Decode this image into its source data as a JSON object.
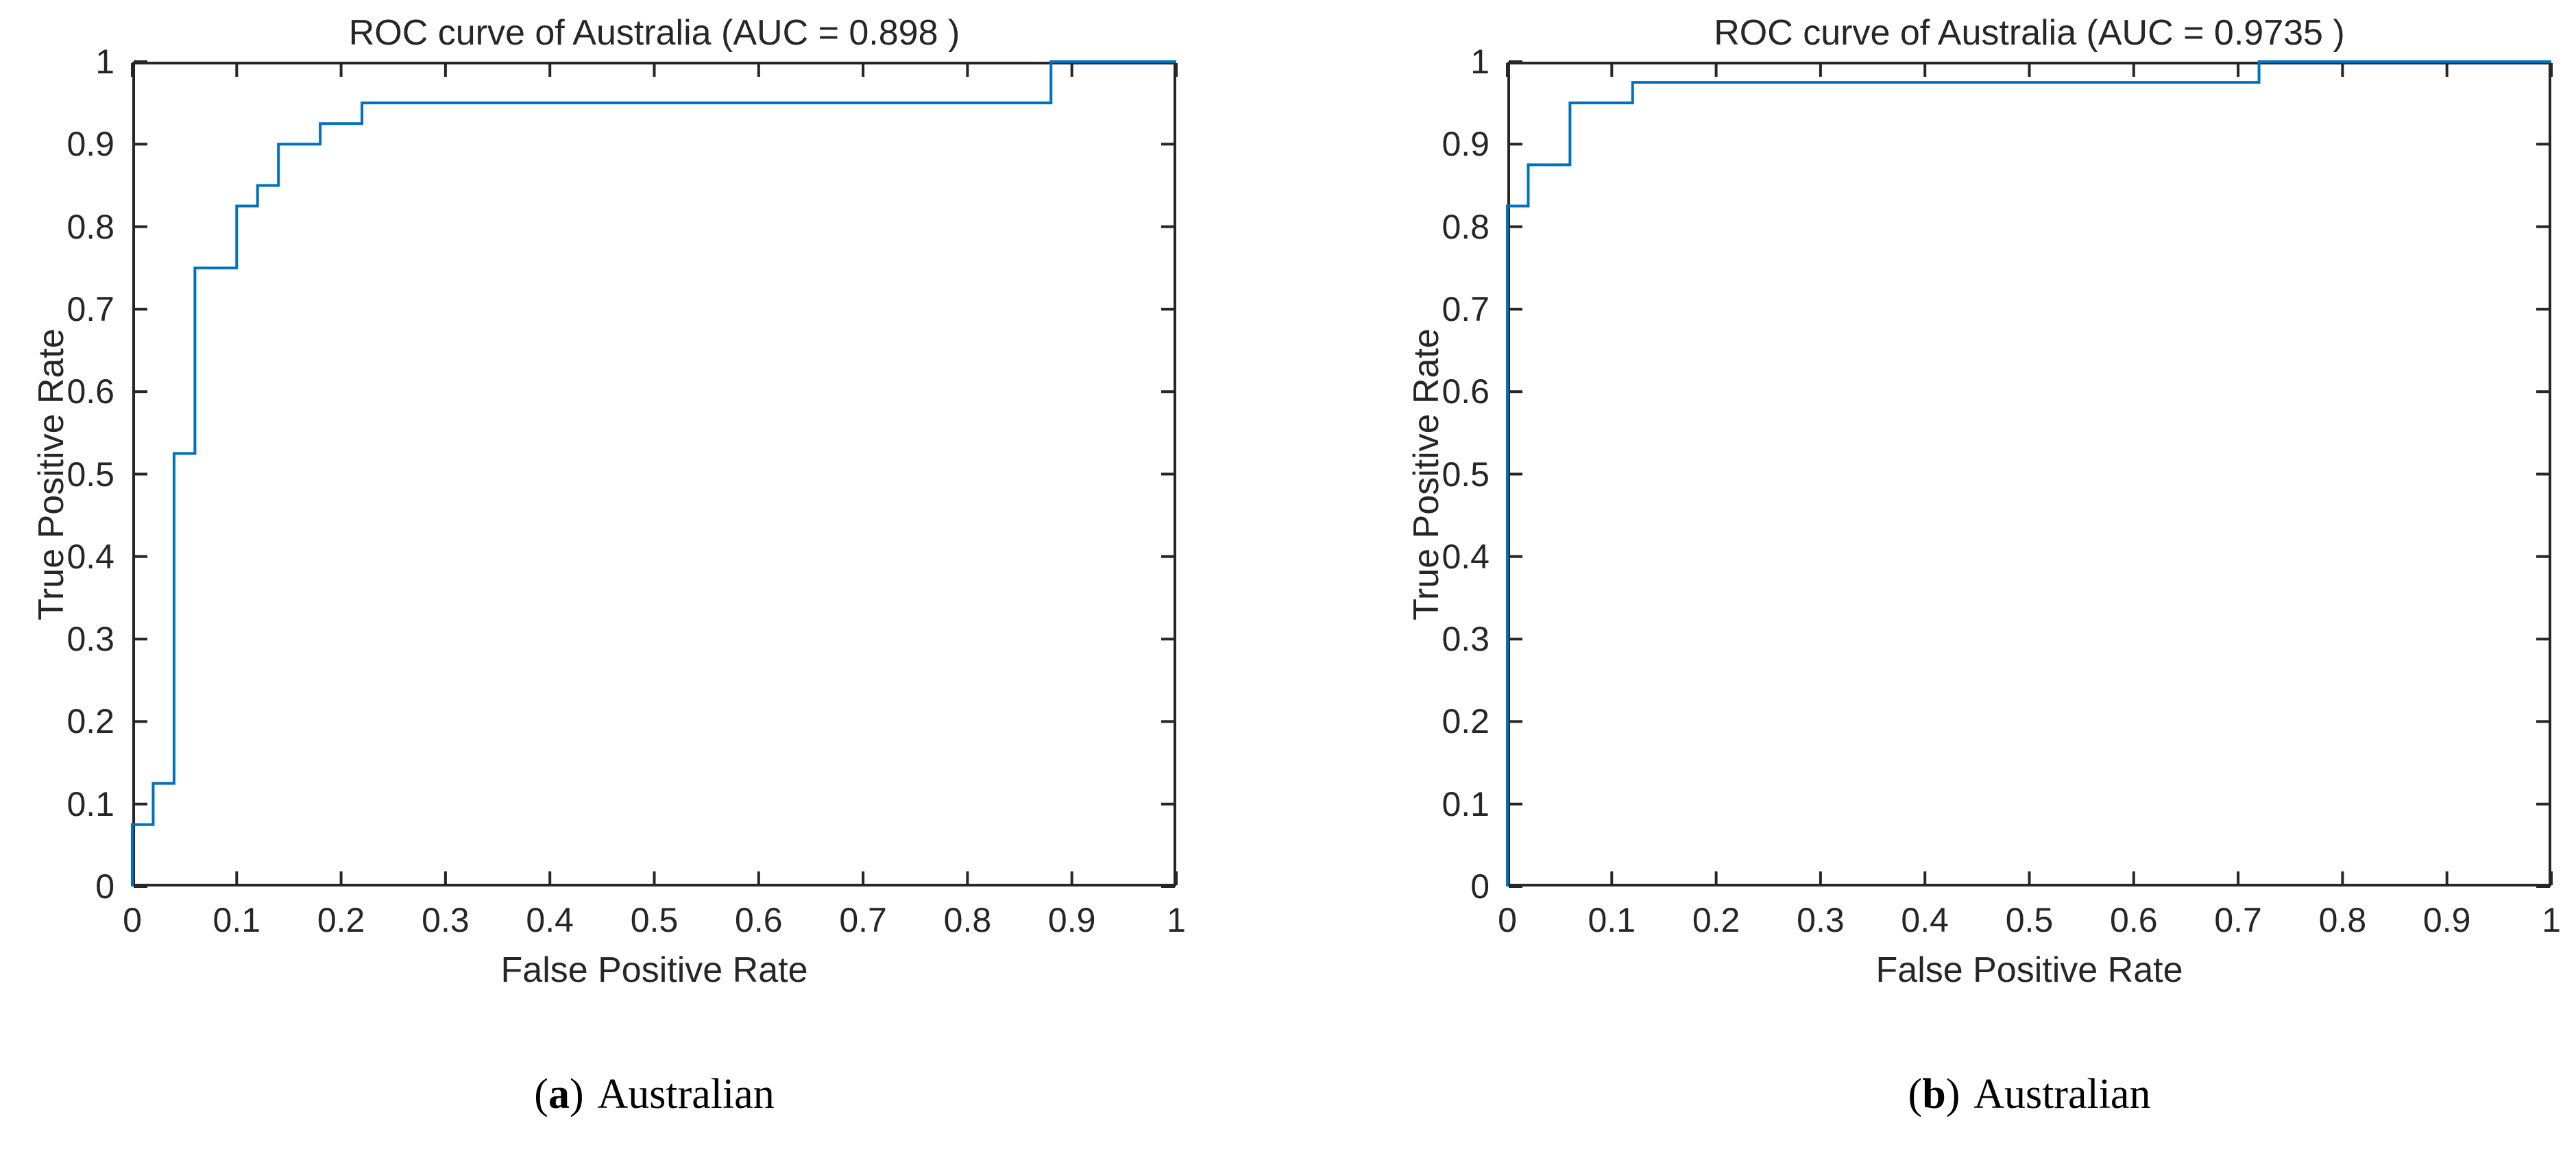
{
  "page": {
    "background": "#ffffff"
  },
  "chart_data": [
    {
      "type": "line",
      "subtype": "roc-step-curve",
      "title": "ROC curve of Australia (AUC = 0.898 )",
      "auc": 0.898,
      "xlabel": "False Positive Rate",
      "ylabel": "True Positive Rate",
      "xlim": [
        0,
        1
      ],
      "ylim": [
        0,
        1
      ],
      "grid": false,
      "legend": "none",
      "xticks": [
        0,
        0.1,
        0.2,
        0.3,
        0.4,
        0.5,
        0.6,
        0.7,
        0.8,
        0.9,
        1
      ],
      "xtick_labels": [
        "0",
        "0.1",
        "0.2",
        "0.3",
        "0.4",
        "0.5",
        "0.6",
        "0.7",
        "0.8",
        "0.9",
        "1"
      ],
      "yticks": [
        0,
        0.1,
        0.2,
        0.3,
        0.4,
        0.5,
        0.6,
        0.7,
        0.8,
        0.9,
        1
      ],
      "ytick_labels": [
        "0",
        "0.1",
        "0.2",
        "0.3",
        "0.4",
        "0.5",
        "0.6",
        "0.7",
        "0.8",
        "0.9",
        "1"
      ],
      "line_color": "#0072BD",
      "axis_color": "#262626",
      "points": [
        [
          0,
          0
        ],
        [
          0,
          0.075
        ],
        [
          0.02,
          0.075
        ],
        [
          0.02,
          0.125
        ],
        [
          0.04,
          0.125
        ],
        [
          0.04,
          0.525
        ],
        [
          0.06,
          0.525
        ],
        [
          0.06,
          0.75
        ],
        [
          0.1,
          0.75
        ],
        [
          0.1,
          0.825
        ],
        [
          0.12,
          0.825
        ],
        [
          0.12,
          0.85
        ],
        [
          0.14,
          0.85
        ],
        [
          0.14,
          0.9
        ],
        [
          0.18,
          0.9
        ],
        [
          0.18,
          0.925
        ],
        [
          0.22,
          0.925
        ],
        [
          0.22,
          0.95
        ],
        [
          0.88,
          0.95
        ],
        [
          0.88,
          1
        ],
        [
          1,
          1
        ]
      ],
      "caption": {
        "open": "(",
        "letter": "a",
        "close": ")",
        "label": "Australian"
      }
    },
    {
      "type": "line",
      "subtype": "roc-step-curve",
      "title": "ROC curve of Australia (AUC = 0.9735 )",
      "auc": 0.9735,
      "xlabel": "False Positive Rate",
      "ylabel": "True Positive Rate",
      "xlim": [
        0,
        1
      ],
      "ylim": [
        0,
        1
      ],
      "grid": false,
      "legend": "none",
      "xticks": [
        0,
        0.1,
        0.2,
        0.3,
        0.4,
        0.5,
        0.6,
        0.7,
        0.8,
        0.9,
        1
      ],
      "xtick_labels": [
        "0",
        "0.1",
        "0.2",
        "0.3",
        "0.4",
        "0.5",
        "0.6",
        "0.7",
        "0.8",
        "0.9",
        "1"
      ],
      "yticks": [
        0,
        0.1,
        0.2,
        0.3,
        0.4,
        0.5,
        0.6,
        0.7,
        0.8,
        0.9,
        1
      ],
      "ytick_labels": [
        "0",
        "0.1",
        "0.2",
        "0.3",
        "0.4",
        "0.5",
        "0.6",
        "0.7",
        "0.8",
        "0.9",
        "1"
      ],
      "line_color": "#0072BD",
      "axis_color": "#262626",
      "points": [
        [
          0,
          0
        ],
        [
          0,
          0.825
        ],
        [
          0.02,
          0.825
        ],
        [
          0.02,
          0.875
        ],
        [
          0.06,
          0.875
        ],
        [
          0.06,
          0.95
        ],
        [
          0.12,
          0.95
        ],
        [
          0.12,
          0.975
        ],
        [
          0.72,
          0.975
        ],
        [
          0.72,
          1
        ],
        [
          1,
          1
        ]
      ],
      "caption": {
        "open": "(",
        "letter": "b",
        "close": ")",
        "label": "Australian"
      }
    }
  ]
}
